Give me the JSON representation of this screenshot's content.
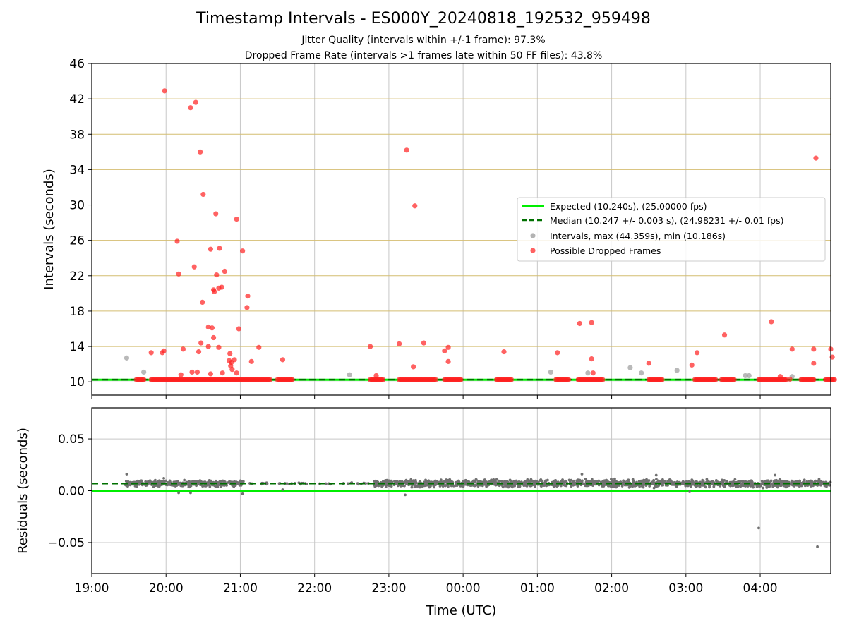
{
  "title": "Timestamp Intervals - ES000Y_20240818_192532_959498",
  "subtitle_1": "Jitter Quality (intervals within +/-1 frame): 97.3%",
  "subtitle_2": "Dropped Frame Rate (intervals >1 frames late within 50 FF files): 43.8%",
  "colors": {
    "expected": "#00ee00",
    "median": "#007000",
    "interval": "#808080",
    "dropped": "#ff2020",
    "hgrid_top": "#d4bd70",
    "grid": "#c8c8c8"
  },
  "chart_data": [
    {
      "type": "scatter",
      "ylabel": "Intervals (seconds)",
      "ylim": [
        8.5,
        46
      ],
      "yticks": [
        10,
        14,
        18,
        22,
        26,
        30,
        34,
        38,
        42,
        46
      ],
      "ytick_labels": [
        "10",
        "14",
        "18",
        "22",
        "26",
        "30",
        "34",
        "38",
        "42",
        "46"
      ],
      "x_range_hours": [
        19.0,
        28.95
      ],
      "grid": true,
      "legend_position": "center-right",
      "legend": [
        "Expected (10.240s), (25.00000 fps)",
        "Median (10.247 +/- 0.003 s), (24.98231 +/- 0.01 fps)",
        "Intervals, max (44.359s), min (10.186s)",
        "Possible Dropped Frames"
      ],
      "expected_value": 10.24,
      "median_value": 10.247,
      "intervals": [
        [
          19.47,
          12.7
        ],
        [
          19.7,
          11.1
        ],
        [
          22.47,
          10.8
        ],
        [
          25.18,
          11.1
        ],
        [
          25.68,
          11.0
        ],
        [
          26.25,
          11.6
        ],
        [
          26.4,
          11.0
        ],
        [
          26.88,
          11.3
        ],
        [
          27.8,
          10.7
        ],
        [
          27.85,
          10.7
        ],
        [
          28.43,
          10.6
        ]
      ],
      "dropped_frames": [
        [
          19.8,
          13.3
        ],
        [
          19.97,
          13.5
        ],
        [
          19.95,
          13.3
        ],
        [
          19.98,
          42.9
        ],
        [
          20.15,
          25.9
        ],
        [
          20.17,
          22.2
        ],
        [
          20.2,
          10.8
        ],
        [
          20.23,
          13.7
        ],
        [
          20.33,
          41.0
        ],
        [
          20.35,
          11.1
        ],
        [
          20.38,
          23.0
        ],
        [
          20.4,
          41.6
        ],
        [
          20.42,
          11.1
        ],
        [
          20.44,
          13.4
        ],
        [
          20.46,
          36.0
        ],
        [
          20.47,
          14.4
        ],
        [
          20.49,
          19.0
        ],
        [
          20.5,
          31.2
        ],
        [
          20.57,
          14.0
        ],
        [
          20.57,
          16.2
        ],
        [
          20.6,
          25.0
        ],
        [
          20.6,
          10.9
        ],
        [
          20.62,
          16.1
        ],
        [
          20.64,
          15.0
        ],
        [
          20.64,
          20.4
        ],
        [
          20.65,
          20.2
        ],
        [
          20.67,
          29.0
        ],
        [
          20.68,
          22.1
        ],
        [
          20.71,
          13.9
        ],
        [
          20.71,
          20.6
        ],
        [
          20.72,
          25.1
        ],
        [
          20.75,
          20.7
        ],
        [
          20.76,
          11.0
        ],
        [
          20.79,
          22.5
        ],
        [
          20.85,
          12.4
        ],
        [
          20.86,
          13.2
        ],
        [
          20.87,
          11.8
        ],
        [
          20.88,
          12.2
        ],
        [
          20.89,
          11.4
        ],
        [
          20.92,
          12.5
        ],
        [
          20.95,
          28.4
        ],
        [
          20.95,
          11.0
        ],
        [
          20.98,
          16.0
        ],
        [
          21.03,
          24.8
        ],
        [
          21.09,
          18.4
        ],
        [
          21.1,
          19.7
        ],
        [
          21.15,
          12.3
        ],
        [
          21.25,
          13.9
        ],
        [
          21.57,
          12.5
        ],
        [
          22.75,
          14.0
        ],
        [
          22.83,
          10.7
        ],
        [
          23.14,
          14.3
        ],
        [
          23.24,
          36.2
        ],
        [
          23.33,
          11.7
        ],
        [
          23.35,
          29.9
        ],
        [
          23.47,
          14.4
        ],
        [
          23.75,
          13.5
        ],
        [
          23.8,
          13.9
        ],
        [
          23.8,
          12.3
        ],
        [
          24.55,
          13.4
        ],
        [
          25.27,
          13.3
        ],
        [
          25.57,
          16.6
        ],
        [
          25.73,
          16.7
        ],
        [
          25.73,
          12.6
        ],
        [
          25.75,
          11.0
        ],
        [
          26.5,
          12.1
        ],
        [
          27.08,
          11.9
        ],
        [
          27.15,
          13.3
        ],
        [
          27.52,
          15.3
        ],
        [
          28.15,
          16.8
        ],
        [
          28.27,
          10.6
        ],
        [
          28.43,
          13.7
        ],
        [
          28.72,
          12.1
        ],
        [
          28.72,
          13.7
        ],
        [
          28.75,
          35.3
        ],
        [
          28.95,
          13.7
        ],
        [
          28.97,
          12.8
        ],
        [
          28.4,
          10.3
        ]
      ],
      "dropped_bands": [
        [
          19.6,
          19.7
        ],
        [
          19.8,
          21.4
        ],
        [
          21.5,
          21.7
        ],
        [
          22.75,
          22.92
        ],
        [
          23.14,
          23.63
        ],
        [
          23.75,
          23.97
        ],
        [
          24.45,
          24.65
        ],
        [
          25.25,
          25.42
        ],
        [
          25.55,
          25.88
        ],
        [
          26.5,
          26.68
        ],
        [
          27.12,
          27.4
        ],
        [
          27.48,
          27.65
        ],
        [
          27.98,
          28.35
        ],
        [
          28.55,
          28.72
        ],
        [
          28.88,
          29.0
        ]
      ]
    },
    {
      "type": "scatter",
      "xlabel": "Time (UTC)",
      "ylabel": "Residuals (seconds)",
      "ylim": [
        -0.08,
        0.08
      ],
      "yticks": [
        -0.05,
        0.0,
        0.05
      ],
      "ytick_labels": [
        "−0.05",
        "0.00",
        "0.05"
      ],
      "x_range_hours": [
        19.0,
        28.95
      ],
      "xticks": [
        19,
        20,
        21,
        22,
        23,
        24,
        25,
        26,
        27,
        28
      ],
      "xtick_labels": [
        "19:00",
        "20:00",
        "21:00",
        "22:00",
        "23:00",
        "00:00",
        "01:00",
        "02:00",
        "03:00",
        "04:00"
      ],
      "grid": true,
      "expected_residual": 0.0,
      "median_residual": 0.007,
      "dense_residuals": [
        {
          "x_range": [
            19.45,
            21.05
          ],
          "center": 0.007,
          "spread": 0.004
        },
        {
          "x_range": [
            21.05,
            22.8
          ],
          "center": 0.007,
          "spread": 0.001
        },
        {
          "x_range": [
            22.8,
            28.95
          ],
          "center": 0.007,
          "spread": 0.005
        }
      ],
      "outliers": [
        [
          19.47,
          0.016
        ],
        [
          19.97,
          0.012
        ],
        [
          20.17,
          -0.002
        ],
        [
          20.33,
          -0.002
        ],
        [
          21.03,
          -0.003
        ],
        [
          21.57,
          0.001
        ],
        [
          23.22,
          -0.004
        ],
        [
          25.6,
          0.016
        ],
        [
          26.6,
          0.015
        ],
        [
          27.05,
          -0.001
        ],
        [
          28.2,
          0.015
        ],
        [
          27.98,
          -0.036
        ],
        [
          28.77,
          -0.054
        ]
      ]
    }
  ]
}
